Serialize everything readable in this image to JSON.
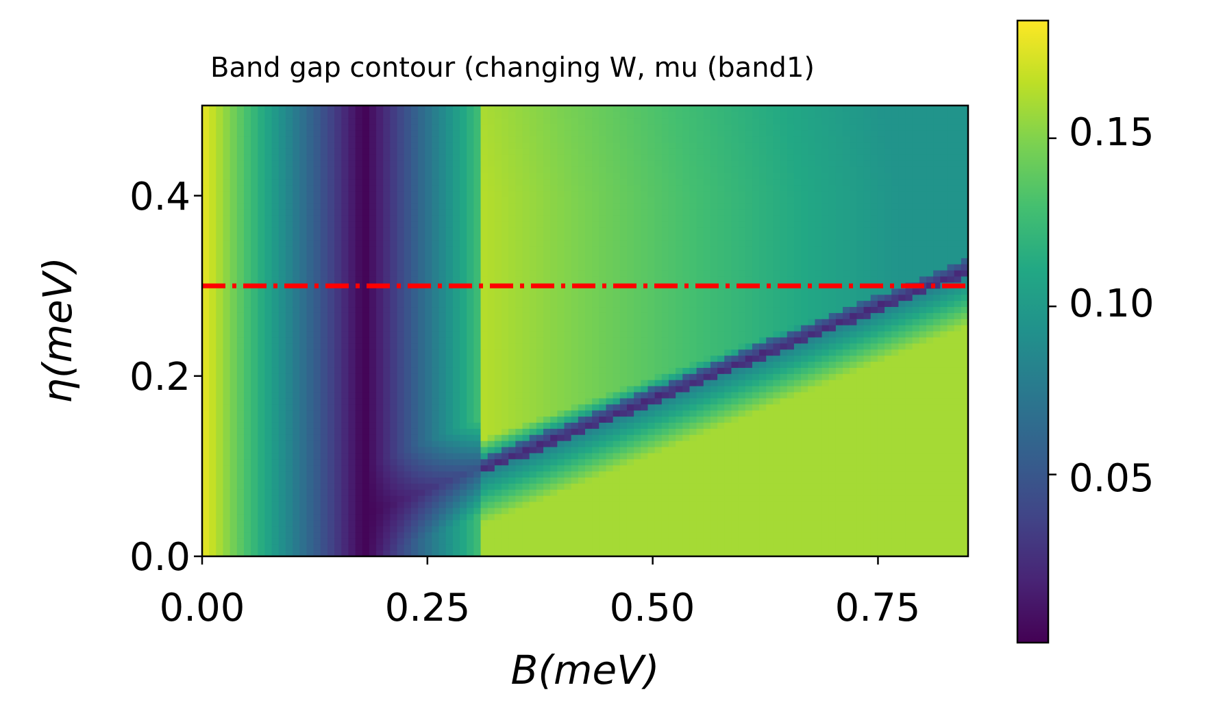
{
  "chart_data": {
    "type": "heatmap",
    "title": "Band gap contour (changing W, mu (band1)",
    "xlabel": "B(meV)",
    "ylabel": "η(meV)",
    "xlim": [
      0.0,
      0.85
    ],
    "ylim": [
      0.0,
      0.5
    ],
    "x_ticks": [
      0.0,
      0.25,
      0.5,
      0.75
    ],
    "x_tick_labels": [
      "0.00",
      "0.25",
      "0.50",
      "0.75"
    ],
    "y_ticks": [
      0.0,
      0.2,
      0.4
    ],
    "y_tick_labels": [
      "0.0",
      "0.2",
      "0.4"
    ],
    "colormap": "viridis",
    "colorbar": {
      "range": [
        0.0,
        0.185
      ],
      "ticks": [
        0.05,
        0.1,
        0.15
      ],
      "tick_labels": [
        "0.05",
        "0.10",
        "0.15"
      ]
    },
    "reference_line": {
      "orientation": "horizontal",
      "y": 0.3,
      "color": "#ff0000",
      "style": "dash-dot"
    },
    "features": {
      "vertical_min_at_B": 0.18,
      "diagonal_min_from": [
        0.19,
        0.05
      ],
      "diagonal_min_to": [
        0.85,
        0.32
      ],
      "max_gap_near_B0": 0.18
    },
    "grid": false
  }
}
